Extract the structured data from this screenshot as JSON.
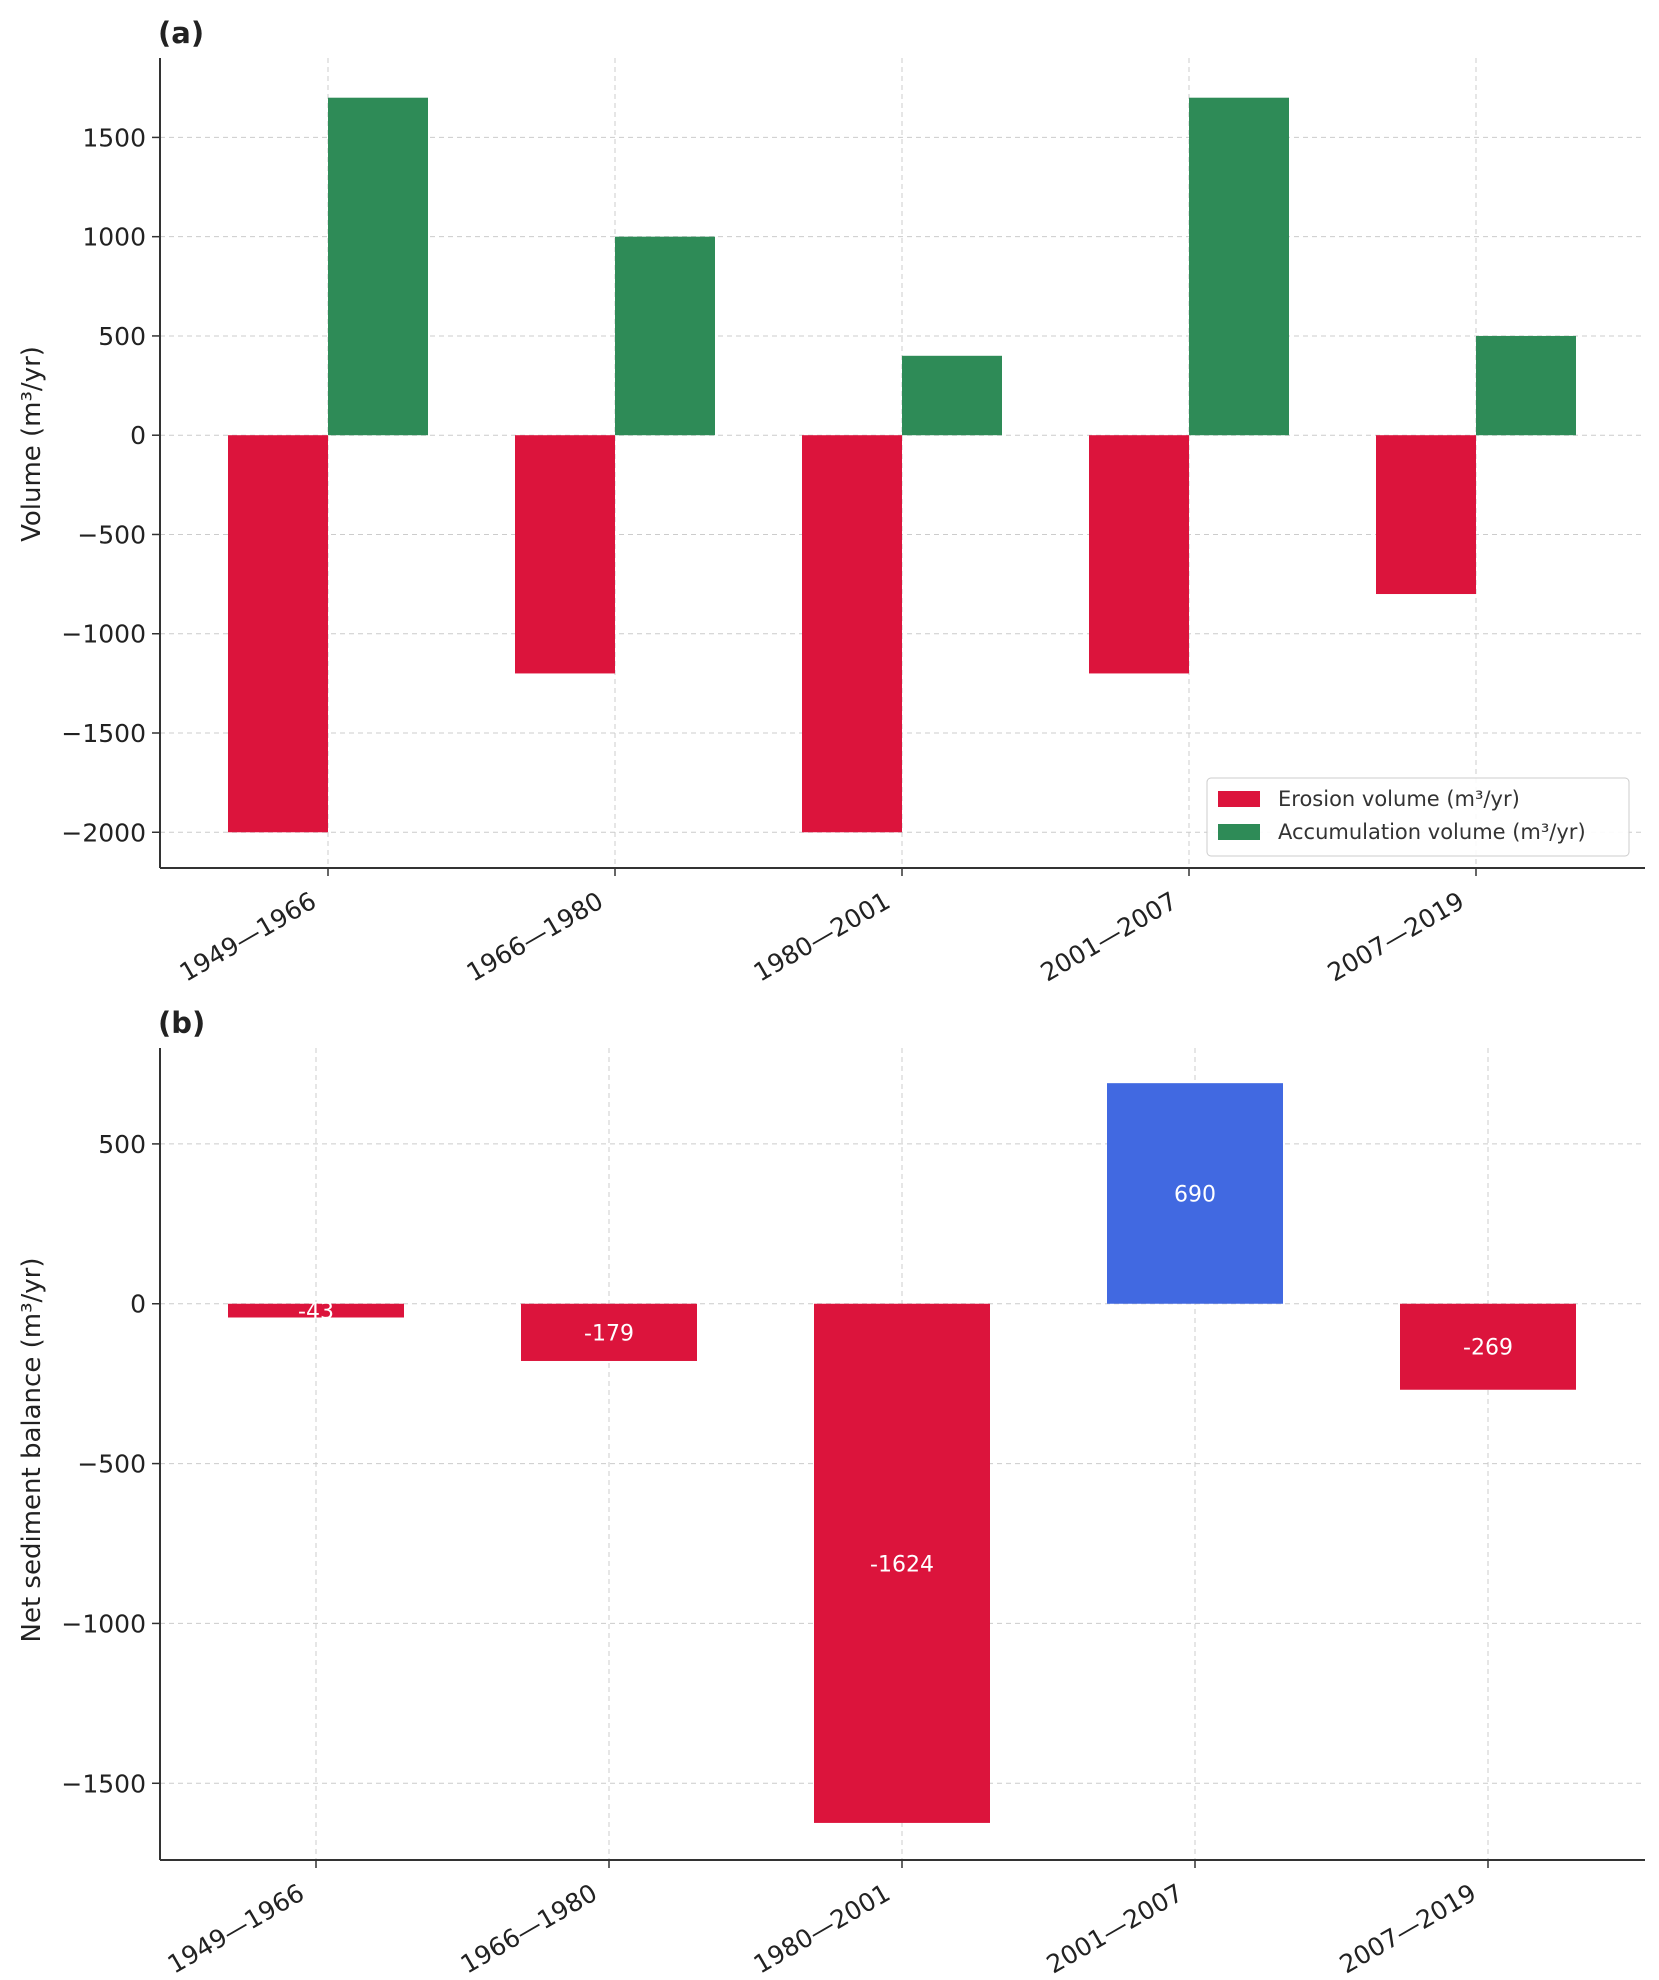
{
  "chart_data": [
    {
      "panel": "(a)",
      "type": "bar",
      "categories": [
        "1949—1966",
        "1966—1980",
        "1980—2001",
        "2001—2007",
        "2007—2019"
      ],
      "series": [
        {
          "name": "Erosion volume (m³/yr)",
          "color": "#dc143c",
          "values": [
            -2000,
            -1200,
            -2000,
            -1200,
            -800
          ]
        },
        {
          "name": "Accumulation volume (m³/yr)",
          "color": "#2e8b57",
          "values": [
            1700,
            1000,
            400,
            1700,
            500
          ]
        }
      ],
      "ylabel": "Volume (m³/yr)",
      "xlabel": "",
      "ylim": [
        -2180,
        1900
      ],
      "yticks": [
        -2000,
        -1500,
        -1000,
        -500,
        0,
        500,
        1000,
        1500
      ],
      "ytick_labels": [
        "−2000",
        "−1500",
        "−1000",
        "−500",
        "0",
        "500",
        "1000",
        "1500"
      ],
      "grid": true,
      "legend_position": "lower-right"
    },
    {
      "panel": "(b)",
      "type": "bar",
      "categories": [
        "1949—1966",
        "1966—1980",
        "1980—2001",
        "2001—2007",
        "2007—2019"
      ],
      "values": [
        -43,
        -179,
        -1624,
        690,
        -269
      ],
      "value_labels": [
        "-43",
        "-179",
        "-1624",
        "690",
        "-269"
      ],
      "colors": {
        "negative": "#dc143c",
        "positive": "#4169e1"
      },
      "ylabel": "Net sediment balance (m³/yr)",
      "xlabel": "",
      "ylim": [
        -1740,
        800
      ],
      "yticks": [
        -1500,
        -1000,
        -500,
        0,
        500
      ],
      "ytick_labels": [
        "−1500",
        "−1000",
        "−500",
        "0",
        "500"
      ],
      "grid": true
    }
  ]
}
